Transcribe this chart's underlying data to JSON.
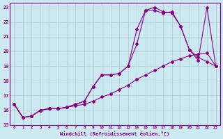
{
  "xlabel": "Windchill (Refroidissement éolien,°C)",
  "background_color": "#cce8f0",
  "grid_color": "#aacccc",
  "line_color": "#880088",
  "xlim": [
    -0.5,
    23.5
  ],
  "ylim": [
    15,
    23.3
  ],
  "yticks": [
    15,
    16,
    17,
    18,
    19,
    20,
    21,
    22,
    23
  ],
  "xticks": [
    0,
    1,
    2,
    3,
    4,
    5,
    6,
    7,
    8,
    9,
    10,
    11,
    12,
    13,
    14,
    15,
    16,
    17,
    18,
    19,
    20,
    21,
    22,
    23
  ],
  "series1_x": [
    0,
    1,
    2,
    3,
    4,
    5,
    6,
    7,
    8,
    9,
    10,
    11,
    12,
    13,
    14,
    15,
    16,
    17,
    18,
    19,
    20,
    21,
    22,
    23
  ],
  "series1_y": [
    16.4,
    15.5,
    15.6,
    16.0,
    16.1,
    16.1,
    16.2,
    16.3,
    16.4,
    16.6,
    16.9,
    17.1,
    17.4,
    17.7,
    18.1,
    18.4,
    18.7,
    19.0,
    19.3,
    19.5,
    19.7,
    19.8,
    19.9,
    19.0
  ],
  "series2_x": [
    0,
    1,
    2,
    3,
    4,
    5,
    6,
    7,
    8,
    9,
    10,
    11,
    12,
    13,
    14,
    15,
    16,
    17,
    18,
    19,
    20,
    21,
    22,
    23
  ],
  "series2_y": [
    16.4,
    15.5,
    15.6,
    16.0,
    16.1,
    16.1,
    16.2,
    16.4,
    16.6,
    17.6,
    18.4,
    18.4,
    18.5,
    19.0,
    20.5,
    22.8,
    22.8,
    22.6,
    22.7,
    21.7,
    20.1,
    19.6,
    19.3,
    19.0
  ],
  "series3_x": [
    0,
    1,
    2,
    3,
    4,
    5,
    6,
    7,
    8,
    9,
    10,
    11,
    12,
    13,
    14,
    15,
    16,
    17,
    18,
    19,
    20,
    21,
    22,
    23
  ],
  "series3_y": [
    16.4,
    15.5,
    15.6,
    16.0,
    16.1,
    16.1,
    16.2,
    16.4,
    16.6,
    17.6,
    18.4,
    18.4,
    18.5,
    19.0,
    21.5,
    22.8,
    23.0,
    22.7,
    22.6,
    21.7,
    20.1,
    19.4,
    23.0,
    19.0
  ]
}
